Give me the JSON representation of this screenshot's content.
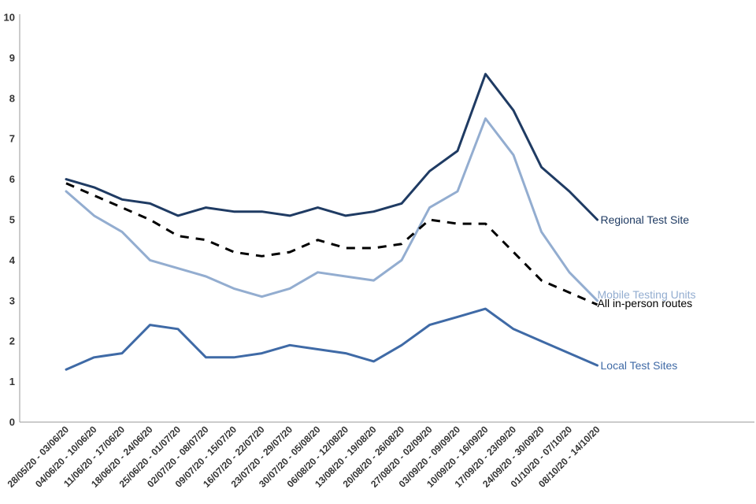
{
  "chart_data": {
    "type": "line",
    "title": "",
    "xlabel": "",
    "ylabel": "",
    "ylim": [
      0,
      10
    ],
    "yticks": [
      0,
      1,
      2,
      3,
      4,
      5,
      6,
      7,
      8,
      9,
      10
    ],
    "grid": false,
    "categories": [
      "28/05/20 - 03/06/20",
      "04/06/20 - 10/06/20",
      "11/06/20 - 17/06/20",
      "18/06/20 - 24/06/20",
      "25/06/20 - 01/07/20",
      "02/07/20 - 08/07/20",
      "09/07/20 - 15/07/20",
      "16/07/20 - 22/07/20",
      "23/07/20 - 29/07/20",
      "30/07/20 - 05/08/20",
      "06/08/20 - 12/08/20",
      "13/08/20 - 19/08/20",
      "20/08/20 - 26/08/20",
      "27/08/20 - 02/09/20",
      "03/09/20 - 09/09/20",
      "10/09/20 - 16/09/20",
      "17/09/20 - 23/09/20",
      "24/09/20 - 30/09/20",
      "01/10/20 - 07/10/20",
      "08/10/20 - 14/10/20"
    ],
    "series": [
      {
        "name": "Regional Test Site",
        "color": "#1f3b63",
        "dash": "solid",
        "values": [
          6.0,
          5.8,
          5.5,
          5.4,
          5.1,
          5.3,
          5.2,
          5.2,
          5.1,
          5.3,
          5.1,
          5.2,
          5.4,
          6.2,
          6.7,
          8.6,
          7.7,
          6.3,
          5.7,
          5.0
        ]
      },
      {
        "name": "Mobile Testing Units",
        "color": "#93add0",
        "dash": "solid",
        "values": [
          5.7,
          5.1,
          4.7,
          4.0,
          3.8,
          3.6,
          3.3,
          3.1,
          3.3,
          3.7,
          3.6,
          3.5,
          4.0,
          5.3,
          5.7,
          7.5,
          6.6,
          4.7,
          3.7,
          3.0
        ]
      },
      {
        "name": "All in-person routes",
        "color": "#000000",
        "dash": "dashed",
        "values": [
          5.9,
          5.6,
          5.3,
          5.0,
          4.6,
          4.5,
          4.2,
          4.1,
          4.2,
          4.5,
          4.3,
          4.3,
          4.4,
          5.0,
          4.9,
          4.9,
          4.2,
          3.5,
          3.2,
          2.9
        ]
      },
      {
        "name": "Local Test Sites",
        "color": "#3f6aa6",
        "dash": "solid",
        "values": [
          1.3,
          1.6,
          1.7,
          2.4,
          2.3,
          1.6,
          1.6,
          1.7,
          1.9,
          1.8,
          1.7,
          1.5,
          1.9,
          2.4,
          2.6,
          2.8,
          2.3,
          2.0,
          1.7,
          1.4
        ]
      }
    ]
  }
}
